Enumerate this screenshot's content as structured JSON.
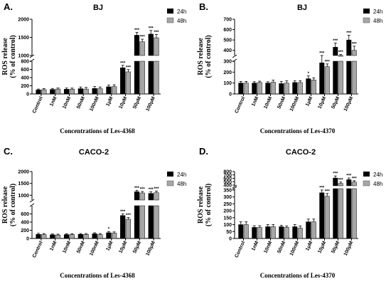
{
  "legend": {
    "s1": "24h",
    "s2": "48h",
    "c1": "#000000",
    "c2": "#a6a6a6"
  },
  "categories": [
    "Control",
    "1nM",
    "10nM",
    "50nM",
    "100nM",
    "1μM",
    "10μM",
    "50μM",
    "100μM"
  ],
  "chart_data": [
    {
      "type": "bar",
      "panel": "A.",
      "title": "BJ",
      "ylabel1": "ROS release",
      "ylabel2": "(% of control)",
      "xlabel": "Concentrations of Les-4368",
      "lower_ticks": [
        "0",
        "200",
        "400",
        "600",
        "800"
      ],
      "lower_range": [
        0,
        800
      ],
      "upper_ticks": [
        "1000",
        "1500",
        "2000"
      ],
      "upper_range": [
        1000,
        2000
      ],
      "series": [
        {
          "name": "24h",
          "values": [
            100,
            110,
            115,
            130,
            135,
            175,
            640,
            1560,
            1590
          ],
          "errors": [
            20,
            25,
            30,
            40,
            45,
            40,
            60,
            80,
            100
          ],
          "sig": [
            "",
            "",
            "",
            "",
            "",
            "",
            "***",
            "***",
            "***"
          ]
        },
        {
          "name": "48h",
          "values": [
            105,
            120,
            118,
            120,
            130,
            180,
            540,
            1380,
            1490
          ],
          "errors": [
            25,
            25,
            25,
            40,
            40,
            45,
            55,
            70,
            90
          ],
          "sig": [
            "",
            "",
            "",
            "",
            "",
            "",
            "***",
            "***",
            "***"
          ]
        }
      ]
    },
    {
      "type": "bar",
      "panel": "B.",
      "title": "BJ",
      "ylabel1": "ROS release",
      "ylabel2": "(% of control)",
      "xlabel": "Concentrations of Les-4370",
      "lower_ticks": [
        "0",
        "100",
        "200",
        "300"
      ],
      "lower_range": [
        0,
        300
      ],
      "upper_ticks": [
        "400",
        "500",
        "600",
        "700"
      ],
      "upper_range": [
        350,
        700
      ],
      "series": [
        {
          "name": "24h",
          "values": [
            100,
            100,
            100,
            95,
            105,
            140,
            285,
            430,
            500
          ],
          "errors": [
            15,
            12,
            12,
            20,
            15,
            25,
            25,
            40,
            45
          ],
          "sig": [
            "",
            "",
            "",
            "",
            "",
            "*",
            "***",
            "***",
            "***"
          ]
        },
        {
          "name": "48h",
          "values": [
            100,
            105,
            108,
            100,
            105,
            128,
            250,
            330,
            400
          ],
          "errors": [
            15,
            12,
            18,
            20,
            15,
            20,
            25,
            30,
            40
          ],
          "sig": [
            "",
            "",
            "",
            "",
            "",
            "",
            "***",
            "***",
            "***"
          ]
        }
      ]
    },
    {
      "type": "bar",
      "panel": "C.",
      "title": "CACO-2",
      "ylabel1": "ROS release",
      "ylabel2": "(% of control)",
      "xlabel": "Concentrations of Les-4368",
      "lower_ticks": [
        "0",
        "200",
        "400",
        "600"
      ],
      "lower_range": [
        0,
        800
      ],
      "upper_ticks": [
        "1000",
        "1500",
        "2000"
      ],
      "upper_range": [
        800,
        2000
      ],
      "series": [
        {
          "name": "24h",
          "values": [
            100,
            90,
            95,
            100,
            115,
            140,
            560,
            1150,
            1080
          ],
          "errors": [
            25,
            20,
            20,
            20,
            25,
            30,
            40,
            60,
            70
          ],
          "sig": [
            "",
            "",
            "",
            "",
            "",
            "*",
            "***",
            "***",
            "***"
          ]
        },
        {
          "name": "48h",
          "values": [
            95,
            85,
            95,
            100,
            95,
            130,
            470,
            1100,
            1110
          ],
          "errors": [
            25,
            20,
            20,
            20,
            25,
            30,
            40,
            60,
            70
          ],
          "sig": [
            "",
            "",
            "",
            "",
            "",
            "",
            "***",
            "***",
            "***"
          ]
        }
      ]
    },
    {
      "type": "bar",
      "panel": "D.",
      "title": "CACO-2",
      "ylabel1": "ROS release",
      "ylabel2": "(% of control)",
      "xlabel": "Concentrations of Les-4370",
      "lower_ticks": [
        "0",
        "50",
        "100",
        "150",
        "200",
        "250",
        "300",
        "350"
      ],
      "lower_range": [
        0,
        360
      ],
      "upper_ticks": [
        "400",
        "500",
        "600",
        "700",
        "800"
      ],
      "upper_range": [
        380,
        800
      ],
      "series": [
        {
          "name": "24h",
          "values": [
            100,
            80,
            85,
            85,
            85,
            120,
            330,
            610,
            560
          ],
          "errors": [
            20,
            12,
            15,
            10,
            15,
            20,
            20,
            60,
            50
          ],
          "sig": [
            "",
            "",
            "",
            "",
            "",
            "",
            "***",
            "***",
            "***"
          ]
        },
        {
          "name": "48h",
          "values": [
            100,
            80,
            85,
            80,
            75,
            120,
            305,
            450,
            490
          ],
          "errors": [
            20,
            12,
            15,
            10,
            15,
            20,
            20,
            40,
            40
          ],
          "sig": [
            "",
            "",
            "",
            "",
            "",
            "",
            "***",
            "***",
            "***"
          ]
        }
      ]
    }
  ]
}
